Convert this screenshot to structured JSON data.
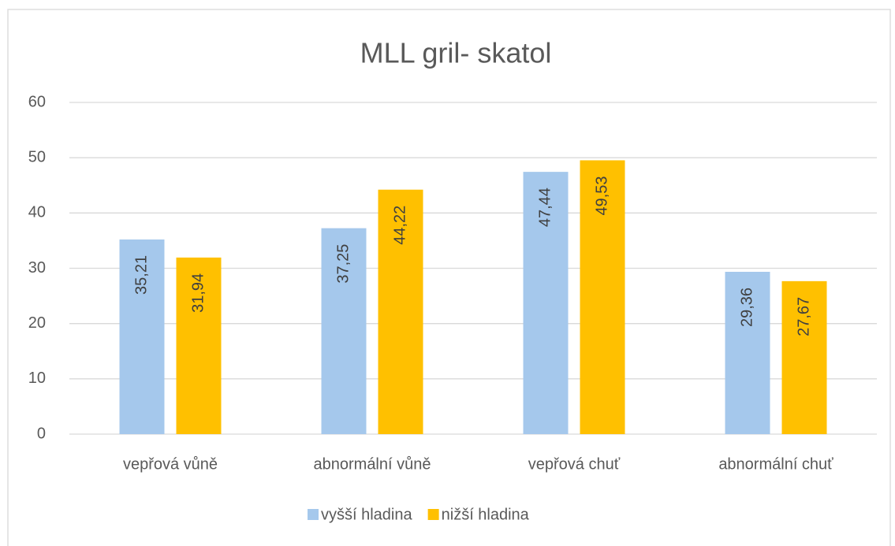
{
  "chart_data": {
    "type": "bar",
    "title": "MLL gril- skatol",
    "categories": [
      "vepřová vůně",
      "abnormální vůně",
      "vepřová chuť",
      "abnormální chuť"
    ],
    "series": [
      {
        "name": "vyšší hladina",
        "color": "#a5c8ec",
        "values": [
          35.21,
          37.25,
          47.44,
          29.36
        ],
        "value_labels": [
          "35,21",
          "37,25",
          "47,44",
          "29,36"
        ]
      },
      {
        "name": "nižší hladina",
        "color": "#ffc000",
        "values": [
          31.94,
          44.22,
          49.53,
          27.67
        ],
        "value_labels": [
          "31,94",
          "44,22",
          "49,53",
          "27,67"
        ]
      }
    ],
    "ylim": [
      0,
      60
    ],
    "yticks": [
      0,
      10,
      20,
      30,
      40,
      50,
      60
    ],
    "grid": true,
    "legend": "bottom"
  }
}
